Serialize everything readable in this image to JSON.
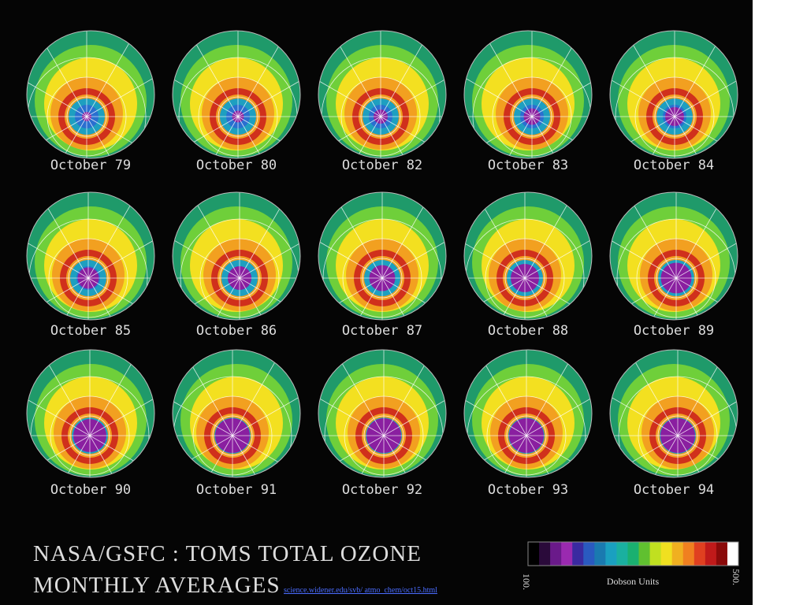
{
  "panels": [
    {
      "label": "October 79"
    },
    {
      "label": "October 80"
    },
    {
      "label": "October 82"
    },
    {
      "label": "October 83"
    },
    {
      "label": "October 84"
    },
    {
      "label": "October 85"
    },
    {
      "label": "October 86"
    },
    {
      "label": "October 87"
    },
    {
      "label": "October 88"
    },
    {
      "label": "October 89"
    },
    {
      "label": "October 90"
    },
    {
      "label": "October 91"
    },
    {
      "label": "October 92"
    },
    {
      "label": "October 93"
    },
    {
      "label": "October 94"
    }
  ],
  "title": {
    "line1": "NASA/GSFC : TOMS TOTAL OZONE",
    "line2": "MONTHLY AVERAGES"
  },
  "link": "science.widener.edu/svb/ atmo_chem/oct15.html",
  "colorbar": {
    "min_label": "100.",
    "unit_label": "Dobson Units",
    "max_label": "500."
  }
}
